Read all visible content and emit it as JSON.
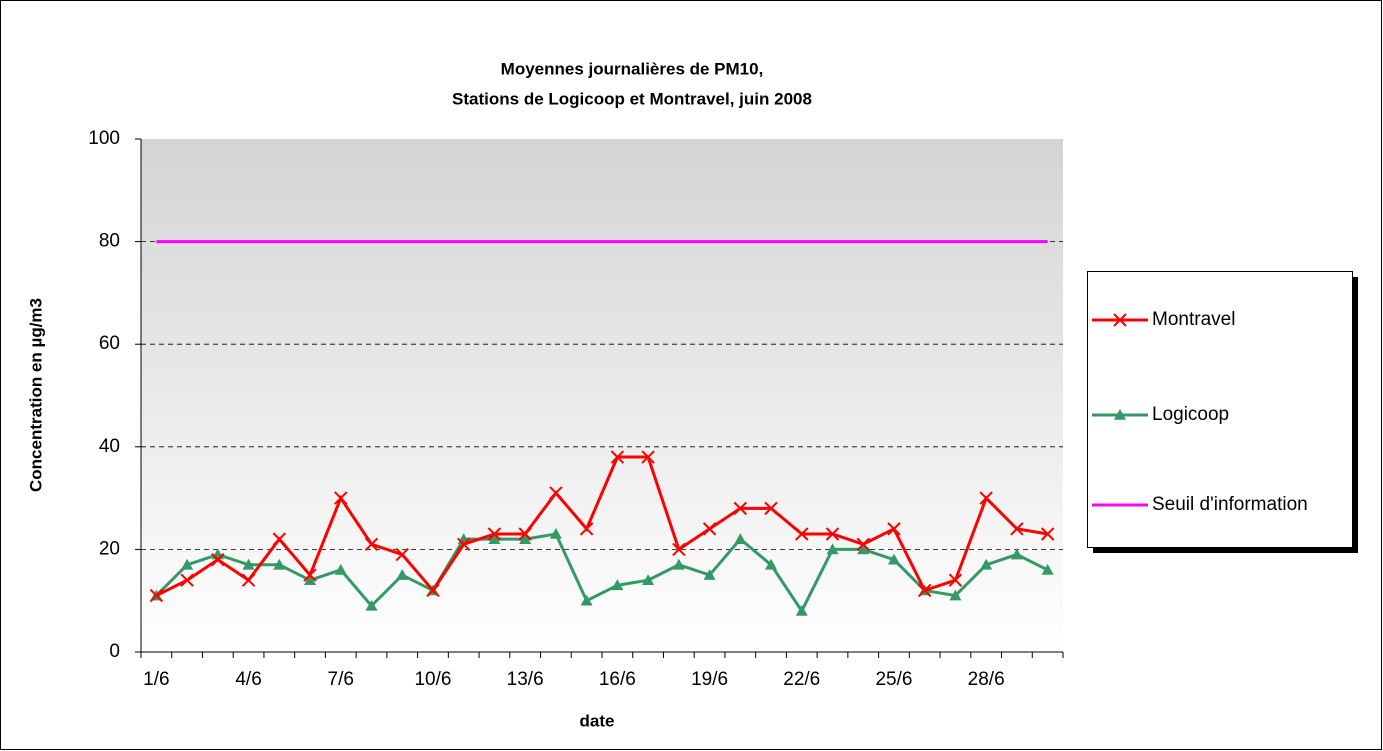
{
  "chart_data": {
    "type": "line",
    "title": "Moyennes journalières de PM10,",
    "subtitle": "Stations de Logicoop et Montravel, juin 2008",
    "x_label": "date",
    "y_label": "Concentration en µg/m3",
    "categories": [
      "1/6",
      null,
      null,
      "4/6",
      null,
      null,
      "7/6",
      null,
      null,
      "10/6",
      null,
      null,
      "13/6",
      null,
      null,
      "16/6",
      null,
      null,
      "19/6",
      null,
      null,
      "22/6",
      null,
      null,
      "25/6",
      null,
      null,
      "28/6",
      null,
      null
    ],
    "series": [
      {
        "name": "Montravel",
        "color": "#ff0000",
        "marker": "x",
        "values": [
          11,
          14,
          18,
          14,
          22,
          15,
          30,
          21,
          19,
          12,
          21,
          23,
          23,
          31,
          24,
          38,
          38,
          20,
          24,
          28,
          28,
          23,
          23,
          21,
          24,
          12,
          14,
          30,
          24,
          23
        ]
      },
      {
        "name": "Logicoop",
        "color": "#339966",
        "marker": "triangle",
        "values": [
          11,
          17,
          19,
          17,
          17,
          14,
          16,
          9,
          15,
          12,
          22,
          22,
          22,
          23,
          10,
          13,
          14,
          17,
          15,
          22,
          17,
          8,
          20,
          20,
          18,
          12,
          11,
          17,
          19,
          16
        ]
      },
      {
        "name": "Seuil d'information",
        "color": "#ff00ff",
        "marker": "none",
        "values": [
          80,
          80,
          80,
          80,
          80,
          80,
          80,
          80,
          80,
          80,
          80,
          80,
          80,
          80,
          80,
          80,
          80,
          80,
          80,
          80,
          80,
          80,
          80,
          80,
          80,
          80,
          80,
          80,
          80,
          80
        ]
      }
    ],
    "ylim": [
      0,
      100
    ],
    "yticks": [
      0,
      20,
      40,
      60,
      80,
      100
    ],
    "grid": true,
    "legend": "right"
  }
}
